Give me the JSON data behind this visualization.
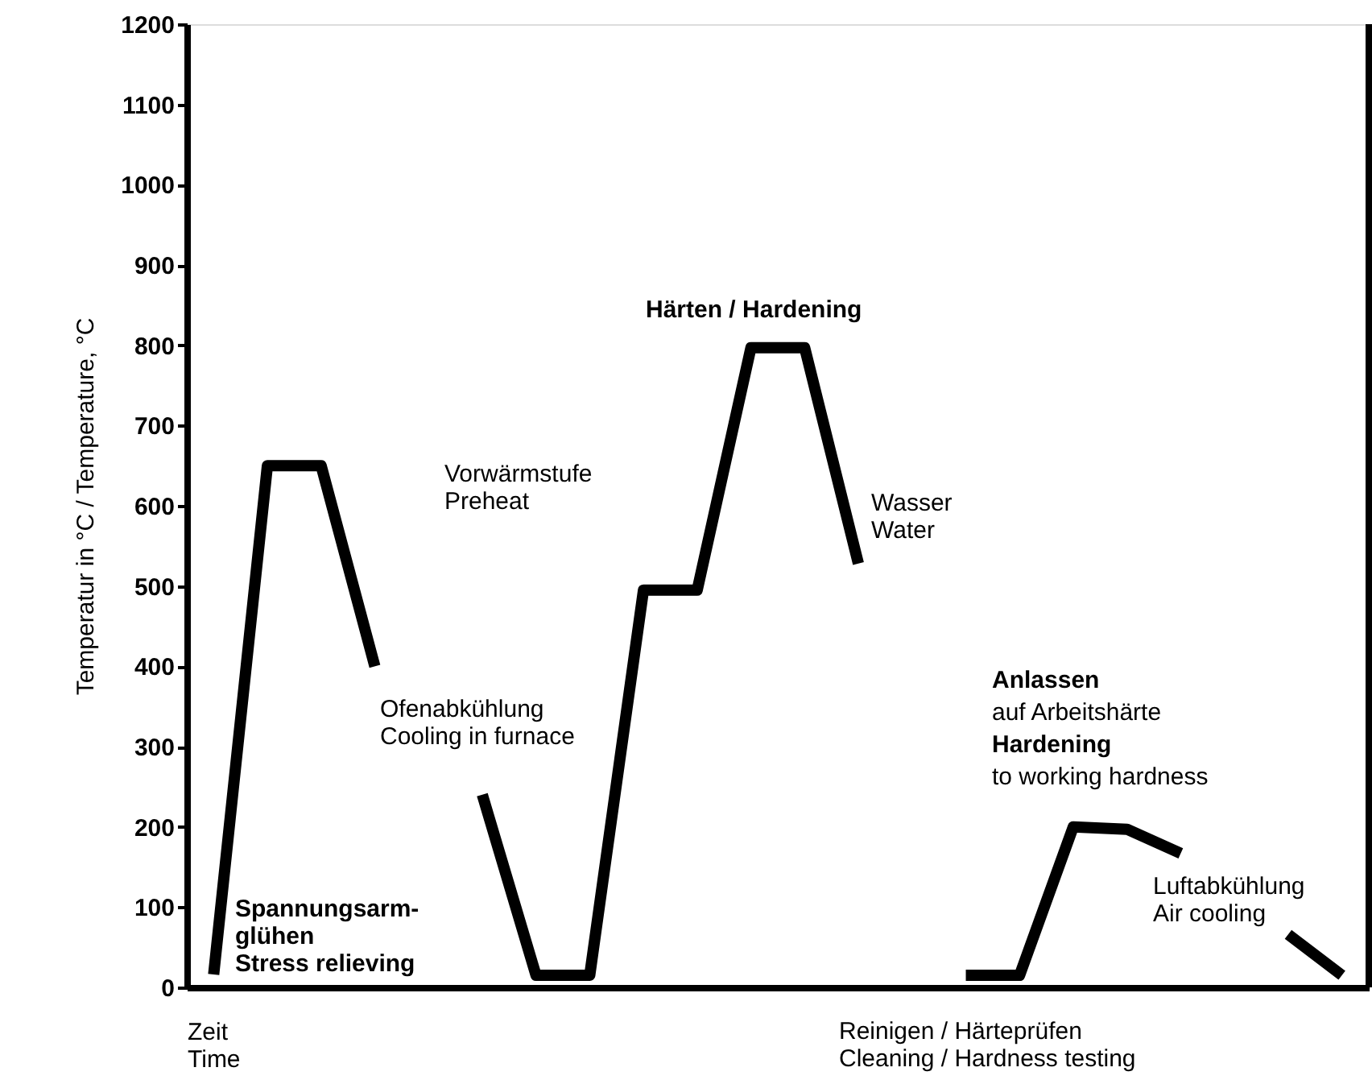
{
  "chart_data": {
    "type": "line",
    "ylabel": "Temperatur in °C / Temperature, °C",
    "xlabel": "Zeit\nTime",
    "categories": [
      null,
      null,
      null,
      null,
      null,
      null,
      null,
      null,
      null,
      null,
      null,
      null,
      null,
      null,
      null,
      null,
      null,
      null,
      null,
      null,
      null,
      null
    ],
    "series": [
      {
        "color": "#000000",
        "values": [
          16,
          650,
          650,
          400,
          null,
          240,
          15,
          15,
          495,
          495,
          797,
          797,
          528,
          null,
          15,
          15,
          200,
          197,
          167,
          null,
          66,
          15
        ]
      }
    ],
    "ylim": [
      0,
      1200
    ],
    "yticks": [
      0,
      100,
      200,
      300,
      400,
      500,
      600,
      700,
      800,
      900,
      1000,
      1100,
      1200
    ],
    "tick_labels": "y",
    "grid": false,
    "marker": "none",
    "line_style": "solid",
    "annotations": [
      "Spannungsarm-\nglühen\nStress relieving",
      "Ofenabkühlung\nCooling in furnace",
      "Vorwärmstufe\nPreheat",
      "Härten / Hardening",
      "Wasser\nWater",
      "Anlassen",
      "auf Arbeitshärte",
      "Hardening",
      "to working hardness",
      "Luftabkühlung\nAir cooling",
      "Reinigen / Härteprüfen\nCleaning / Hardness testing"
    ]
  }
}
